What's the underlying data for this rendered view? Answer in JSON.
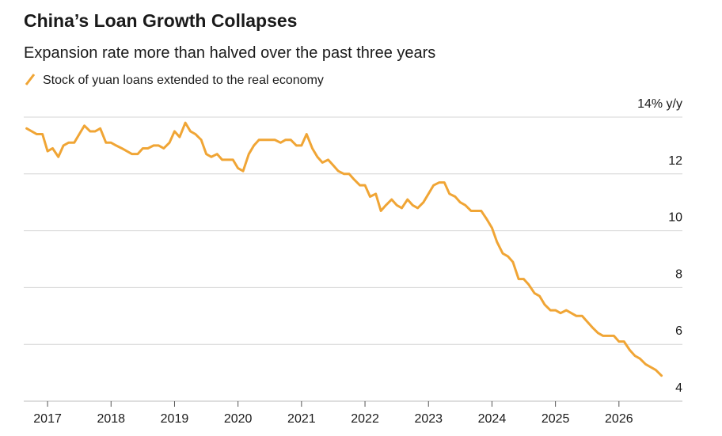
{
  "chart_data": {
    "type": "line",
    "title": "China’s Loan Growth Collapses",
    "subtitle": "Expansion rate more than halved over the past three years",
    "x": [
      2016.67,
      2016.75,
      2016.83,
      2016.92,
      2017,
      2017.08,
      2017.17,
      2017.25,
      2017.33,
      2017.42,
      2017.5,
      2017.58,
      2017.67,
      2017.75,
      2017.83,
      2017.92,
      2018,
      2018.08,
      2018.17,
      2018.25,
      2018.33,
      2018.42,
      2018.5,
      2018.58,
      2018.67,
      2018.75,
      2018.83,
      2018.92,
      2019,
      2019.08,
      2019.17,
      2019.25,
      2019.33,
      2019.42,
      2019.5,
      2019.58,
      2019.67,
      2019.75,
      2019.83,
      2019.92,
      2020,
      2020.08,
      2020.17,
      2020.25,
      2020.33,
      2020.42,
      2020.5,
      2020.58,
      2020.67,
      2020.75,
      2020.83,
      2020.92,
      2021,
      2021.08,
      2021.17,
      2021.25,
      2021.33,
      2021.42,
      2021.5,
      2021.58,
      2021.67,
      2021.75,
      2021.83,
      2021.92,
      2022,
      2022.08,
      2022.17,
      2022.25,
      2022.33,
      2022.42,
      2022.5,
      2022.58,
      2022.67,
      2022.75,
      2022.83,
      2022.92,
      2023,
      2023.08,
      2023.17,
      2023.25,
      2023.33,
      2023.42,
      2023.5,
      2023.58,
      2023.67,
      2023.75,
      2023.83,
      2023.92,
      2024,
      2024.08,
      2024.17,
      2024.25,
      2024.33,
      2024.42,
      2024.5,
      2024.58,
      2024.67,
      2024.75,
      2024.83,
      2024.92,
      2025,
      2025.08,
      2025.17,
      2025.25,
      2025.33,
      2025.42,
      2025.5,
      2025.58,
      2025.67,
      2025.75,
      2025.83,
      2025.92,
      2026,
      2026.08,
      2026.17,
      2026.25,
      2026.33,
      2026.42,
      2026.5,
      2026.58,
      2026.67
    ],
    "series": [
      {
        "name": "Stock of yuan loans extended to the real economy",
        "color": "#f0a535",
        "values": [
          13.6,
          13.5,
          13.4,
          13.4,
          12.8,
          12.9,
          12.6,
          13.0,
          13.1,
          13.1,
          13.4,
          13.7,
          13.5,
          13.5,
          13.6,
          13.1,
          13.1,
          13.0,
          12.9,
          12.8,
          12.7,
          12.7,
          12.9,
          12.9,
          13.0,
          13.0,
          12.9,
          13.1,
          13.5,
          13.3,
          13.8,
          13.5,
          13.4,
          13.2,
          12.7,
          12.6,
          12.7,
          12.5,
          12.5,
          12.5,
          12.2,
          12.1,
          12.7,
          13.0,
          13.2,
          13.2,
          13.2,
          13.2,
          13.1,
          13.2,
          13.2,
          13.0,
          13.0,
          13.4,
          12.9,
          12.6,
          12.4,
          12.5,
          12.3,
          12.1,
          12.0,
          12.0,
          11.8,
          11.6,
          11.6,
          11.2,
          11.3,
          10.7,
          10.9,
          11.1,
          10.9,
          10.8,
          11.1,
          10.9,
          10.8,
          11.0,
          11.3,
          11.6,
          11.7,
          11.7,
          11.3,
          11.2,
          11.0,
          10.9,
          10.7,
          10.7,
          10.7,
          10.4,
          10.1,
          9.6,
          9.2,
          9.1,
          8.9,
          8.3,
          8.3,
          8.1,
          7.8,
          7.7,
          7.4,
          7.2,
          7.2,
          7.1,
          7.2,
          7.1,
          7.0,
          7.0,
          6.8,
          6.6,
          6.4,
          6.3,
          6.3,
          6.3,
          6.1,
          6.1,
          5.8,
          5.6,
          5.5,
          5.3,
          5.2,
          5.1,
          4.9
        ]
      }
    ],
    "xlim": [
      2016.6,
      2026.9
    ],
    "xticks": [
      2017,
      2018,
      2019,
      2020,
      2021,
      2022,
      2023,
      2024,
      2025,
      2026
    ],
    "ylim": [
      4,
      14
    ],
    "yticks": [
      {
        "value": 14,
        "label": "14% y/y"
      },
      12,
      10,
      8,
      6,
      4
    ],
    "grid": true
  }
}
